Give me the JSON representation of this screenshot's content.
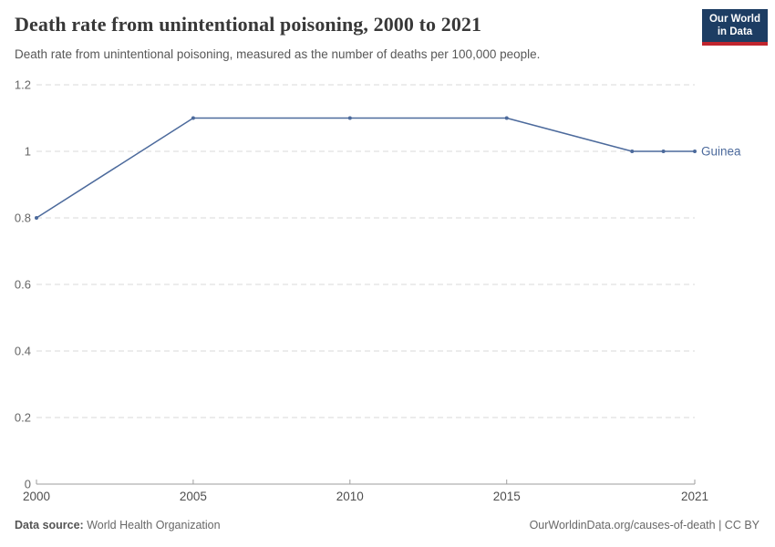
{
  "header": {
    "title": "Death rate from unintentional poisoning, 2000 to 2021",
    "subtitle": "Death rate from unintentional poisoning, measured as the number of deaths per 100,000 people."
  },
  "logo": {
    "line1": "Our World",
    "line2": "in Data",
    "bg_color": "#1d3d63",
    "bar_color": "#c0252e"
  },
  "chart_data": {
    "type": "line",
    "title": "Death rate from unintentional poisoning, 2000 to 2021",
    "subtitle": "Death rate from unintentional poisoning, measured as the number of deaths per 100,000 people.",
    "x": [
      2000,
      2005,
      2010,
      2015,
      2019,
      2020,
      2021
    ],
    "series": [
      {
        "name": "Guinea",
        "color": "#4c6a9c",
        "values": [
          0.8,
          1.1,
          1.1,
          1.1,
          1.0,
          1.0,
          1.0
        ]
      }
    ],
    "xlabel": "",
    "ylabel": "",
    "xlim": [
      2000,
      2021
    ],
    "ylim": [
      0,
      1.2
    ],
    "x_ticks": [
      2000,
      2005,
      2010,
      2015,
      2021
    ],
    "y_ticks": [
      0,
      0.2,
      0.4,
      0.6,
      0.8,
      1,
      1.2
    ],
    "grid": "horizontal-dashed",
    "legend": "end-of-line-label",
    "markers": true
  },
  "colors": {
    "line": "#4c6a9c",
    "grid": "#d9d9d9",
    "axis": "#9e9e9e",
    "y_tick_label": "#666666",
    "x_tick_label": "#4f4f4f"
  },
  "footer": {
    "source_label": "Data source:",
    "source_value": " World Health Organization",
    "credit": "OurWorldinData.org/causes-of-death | CC BY"
  }
}
